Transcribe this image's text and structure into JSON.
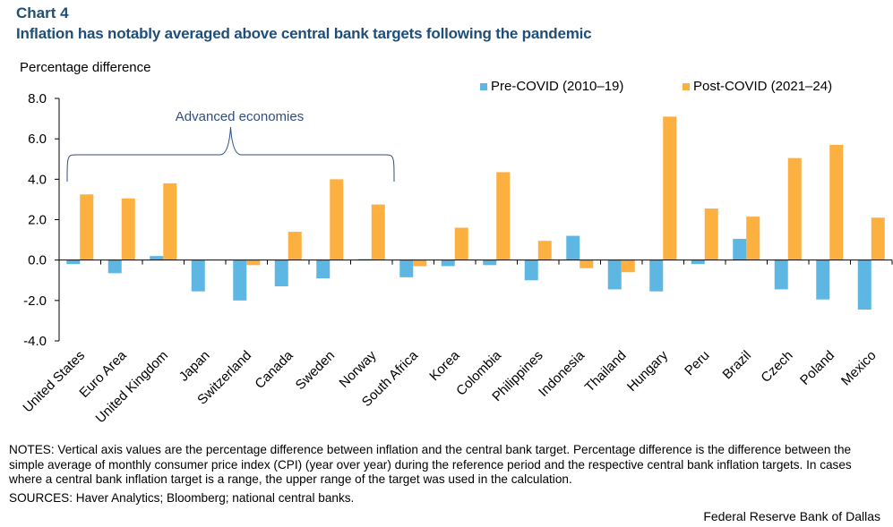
{
  "header": {
    "label": "Chart 4",
    "title": "Inflation has notably averaged above central bank targets following the pandemic"
  },
  "notes": "NOTES: Vertical axis values are the percentage difference between inflation and the central bank target. Percentage difference is the difference between the simple average of monthly consumer price index (CPI) (year over year) during the reference period and the respective central bank inflation targets. In cases where a central bank inflation target is a range, the upper range of the target was used in the calculation.",
  "sources": "SOURCES: Haver Analytics; Bloomberg; national central banks.",
  "credit": "Federal Reserve Bank of Dallas",
  "colors": {
    "pre": "#5eb7e2",
    "post": "#fbb040",
    "title": "#1f4e79",
    "annotation": "#2f4f7f"
  },
  "chart_data": {
    "type": "bar",
    "ylabel": "Percentage difference",
    "ylim": [
      -4.0,
      8.0
    ],
    "yticks": [
      "8.0",
      "6.0",
      "4.0",
      "2.0",
      "0.0",
      "-2.0",
      "-4.0"
    ],
    "ytick_values": [
      8,
      6,
      4,
      2,
      0,
      -2,
      -4
    ],
    "legend_position": "top-right",
    "grid": false,
    "annotation": {
      "text": "Advanced economies",
      "from_category": "United States",
      "to_category": "Norway"
    },
    "categories": [
      "United States",
      "Euro Area",
      "United Kingdom",
      "Japan",
      "Switzerland",
      "Canada",
      "Sweden",
      "Norway",
      "South Africa",
      "Korea",
      "Colombia",
      "Philippines",
      "Indonesia",
      "Thailand",
      "Hungary",
      "Peru",
      "Brazil",
      "Czech",
      "Poland",
      "Mexico"
    ],
    "series": [
      {
        "name": "Pre-COVID (2010–19)",
        "values": [
          -0.2,
          -0.65,
          0.2,
          -1.55,
          -2.0,
          -1.3,
          -0.9,
          0.05,
          -0.85,
          -0.3,
          -0.25,
          -1.0,
          1.2,
          -1.45,
          -1.55,
          -0.2,
          1.05,
          -1.45,
          -1.95,
          -2.45
        ]
      },
      {
        "name": "Post-COVID (2021–24)",
        "values": [
          3.25,
          3.05,
          3.8,
          0.0,
          -0.25,
          1.4,
          4.0,
          2.75,
          -0.3,
          1.6,
          4.35,
          0.95,
          -0.4,
          -0.6,
          7.1,
          2.55,
          2.15,
          5.05,
          5.7,
          2.1
        ]
      }
    ]
  }
}
